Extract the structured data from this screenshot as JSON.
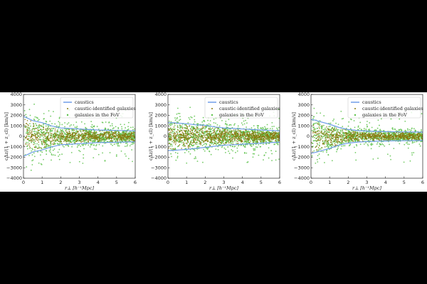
{
  "figure": {
    "panels": [
      "panel-1",
      "panel-2",
      "panel-3"
    ]
  },
  "chart_data": [
    {
      "type": "scatter",
      "panel": 1,
      "xlabel": "r⊥ [h⁻¹Mpc]",
      "ylabel": "cΔz/(1 + z_cl) [km/s]",
      "xlim": [
        0,
        6
      ],
      "ylim": [
        -4000,
        4000
      ],
      "xticks": [
        "0",
        "1",
        "2",
        "3",
        "4",
        "5",
        "6"
      ],
      "yticks": [
        "4000",
        "3000",
        "2000",
        "1000",
        "0",
        "−1000",
        "−2000",
        "−3000",
        "−4000"
      ],
      "grid": false,
      "legend_position": "top-right",
      "legend": [
        "caustics",
        "caustic-identified galaxies",
        "galaxies in the FoV"
      ],
      "colors": {
        "caustics": "#6f9ee8",
        "members": "#8a7a10",
        "fov": "#5cc24a"
      },
      "caustic_x": [
        0.0,
        0.2,
        0.5,
        1.0,
        1.5,
        2.0,
        2.5,
        3.0,
        3.5,
        4.0,
        4.5,
        5.0,
        5.5,
        6.0
      ],
      "caustic_upper": [
        1900,
        1750,
        1500,
        1300,
        1000,
        800,
        750,
        700,
        650,
        600,
        580,
        560,
        540,
        520
      ],
      "caustic_lower": [
        -1900,
        -1750,
        -1500,
        -1300,
        -1000,
        -800,
        -750,
        -700,
        -650,
        -600,
        -580,
        -560,
        -540,
        -520
      ],
      "n_members": 750,
      "n_fov": 1150
    },
    {
      "type": "scatter",
      "panel": 2,
      "xlabel": "r⊥ [h⁻¹Mpc]",
      "ylabel": "cΔz/(1 + z_cl) [km/s]",
      "xlim": [
        0,
        6
      ],
      "ylim": [
        -4000,
        4000
      ],
      "xticks": [
        "0",
        "1",
        "2",
        "3",
        "4",
        "5",
        "6"
      ],
      "yticks": [
        "4000",
        "3000",
        "2000",
        "1000",
        "0",
        "−1000",
        "−2000",
        "−3000",
        "−4000"
      ],
      "grid": false,
      "legend_position": "top-right",
      "legend": [
        "caustics",
        "caustic-identified galaxies",
        "galaxies in the FoV"
      ],
      "colors": {
        "caustics": "#6f9ee8",
        "members": "#8a7a10",
        "fov": "#5cc24a"
      },
      "caustic_x": [
        0.0,
        0.3,
        0.6,
        1.0,
        1.5,
        2.0,
        2.5,
        3.0,
        3.5,
        4.0,
        4.5,
        5.0,
        5.5,
        6.0
      ],
      "caustic_upper": [
        1300,
        1300,
        1250,
        1200,
        1100,
        1050,
        900,
        800,
        750,
        700,
        650,
        600,
        560,
        520
      ],
      "caustic_lower": [
        -1350,
        -1350,
        -1300,
        -1250,
        -1150,
        -1050,
        -950,
        -850,
        -800,
        -750,
        -700,
        -650,
        -600,
        -560
      ],
      "n_members": 950,
      "n_fov": 1250
    },
    {
      "type": "scatter",
      "panel": 3,
      "xlabel": "r⊥ [h⁻¹Mpc]",
      "ylabel": "cΔz/(1 + z_cl) [km/s]",
      "xlim": [
        0,
        6
      ],
      "ylim": [
        -4000,
        4000
      ],
      "xticks": [
        "0",
        "1",
        "2",
        "3",
        "4",
        "5",
        "6"
      ],
      "yticks": [
        "4000",
        "3000",
        "2000",
        "1000",
        "0",
        "−1000",
        "−2000",
        "−3000",
        "−4000"
      ],
      "grid": false,
      "legend_position": "top-right",
      "legend": [
        "caustics",
        "caustic-identified galaxies",
        "galaxies in the FoV"
      ],
      "colors": {
        "caustics": "#6f9ee8",
        "members": "#8a7a10",
        "fov": "#5cc24a"
      },
      "caustic_x": [
        0.0,
        0.2,
        0.5,
        1.0,
        1.5,
        2.0,
        2.5,
        3.0,
        3.5,
        4.0,
        4.5,
        5.0,
        5.5,
        6.0
      ],
      "caustic_upper": [
        1600,
        1550,
        1400,
        1150,
        850,
        650,
        550,
        500,
        470,
        450,
        430,
        420,
        410,
        400
      ],
      "caustic_lower": [
        -1600,
        -1550,
        -1400,
        -1150,
        -850,
        -650,
        -550,
        -500,
        -470,
        -450,
        -430,
        -420,
        -410,
        -400
      ],
      "n_members": 800,
      "n_fov": 1100
    }
  ]
}
